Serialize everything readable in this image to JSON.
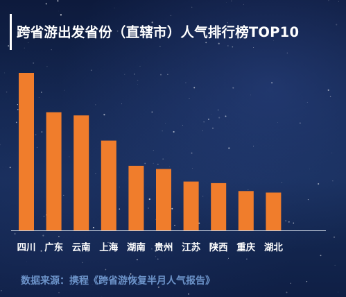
{
  "title": "跨省游出发省份（直辖市）人气排行榜TOP10",
  "source": "数据来源：携程《跨省游恢复半月人气报告》",
  "colors": {
    "bar": "#f07d2c",
    "axis": "#c9d2e0",
    "text": "#ffffff",
    "source": "#6c93c9"
  },
  "chart_data": {
    "type": "bar",
    "title": "跨省游出发省份（直辖市）人气排行榜TOP10",
    "categories": [
      "四川",
      "广东",
      "云南",
      "上海",
      "湖南",
      "贵州",
      "江苏",
      "陕西",
      "重庆",
      "湖北"
    ],
    "values": [
      100,
      75,
      73,
      57,
      41,
      39,
      31,
      30,
      25,
      24
    ],
    "ylim": [
      0,
      100
    ],
    "grid": false,
    "legend": "none"
  }
}
